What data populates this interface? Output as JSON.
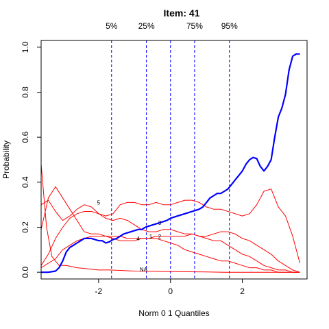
{
  "chart_data": {
    "type": "line",
    "title": "Item:  41",
    "xlabel": "Norm 0 1 Quantiles",
    "ylabel": "Probability",
    "xlim": [
      -3.6,
      3.8
    ],
    "ylim": [
      -0.03,
      1.03
    ],
    "x_ticks": [
      -2,
      0,
      2
    ],
    "y_ticks": [
      0.0,
      0.2,
      0.4,
      0.6,
      0.8,
      1.0
    ],
    "x_tick_labels": [
      "-2",
      "0",
      "2"
    ],
    "y_tick_labels": [
      "0.0",
      "0.2",
      "0.4",
      "0.6",
      "0.8",
      "1.0"
    ],
    "grid": false,
    "quantile_lines": [
      {
        "label": "5%",
        "x": -1.64
      },
      {
        "label": "25%",
        "x": -0.67
      },
      {
        "label": "",
        "x": 0.0
      },
      {
        "label": "75%",
        "x": 0.67
      },
      {
        "label": "95%",
        "x": 1.64
      }
    ],
    "colors": {
      "key": "#0000ff",
      "distractor": "#ff0000",
      "quantile": "#0000ff",
      "axis": "#000000"
    },
    "series": [
      {
        "label": "3",
        "label_at": [
          -0.3,
          0.21
        ],
        "role": "key",
        "x": [
          -3.6,
          -3.4,
          -3.2,
          -3.1,
          -3.0,
          -2.9,
          -2.8,
          -2.7,
          -2.6,
          -2.5,
          -2.4,
          -2.3,
          -2.2,
          -2.1,
          -2.0,
          -1.9,
          -1.8,
          -1.7,
          -1.6,
          -1.5,
          -1.4,
          -1.3,
          -1.2,
          -1.1,
          -1.0,
          -0.9,
          -0.8,
          -0.7,
          -0.6,
          -0.5,
          -0.4,
          -0.3,
          -0.2,
          -0.1,
          0.0,
          0.1,
          0.2,
          0.3,
          0.4,
          0.5,
          0.6,
          0.7,
          0.8,
          0.9,
          1.0,
          1.1,
          1.2,
          1.3,
          1.4,
          1.5,
          1.6,
          1.7,
          1.8,
          1.9,
          2.0,
          2.1,
          2.2,
          2.3,
          2.4,
          2.5,
          2.6,
          2.7,
          2.8,
          2.9,
          3.0,
          3.1,
          3.2,
          3.3,
          3.4,
          3.5,
          3.6
        ],
        "values": [
          0.0,
          0.0,
          0.005,
          0.02,
          0.05,
          0.09,
          0.11,
          0.12,
          0.13,
          0.14,
          0.15,
          0.15,
          0.15,
          0.145,
          0.14,
          0.14,
          0.13,
          0.135,
          0.145,
          0.15,
          0.16,
          0.17,
          0.175,
          0.18,
          0.185,
          0.19,
          0.19,
          0.2,
          0.205,
          0.21,
          0.215,
          0.22,
          0.225,
          0.23,
          0.24,
          0.245,
          0.25,
          0.255,
          0.26,
          0.265,
          0.27,
          0.275,
          0.28,
          0.29,
          0.31,
          0.33,
          0.34,
          0.35,
          0.35,
          0.36,
          0.37,
          0.39,
          0.41,
          0.43,
          0.45,
          0.48,
          0.5,
          0.51,
          0.505,
          0.47,
          0.45,
          0.47,
          0.5,
          0.6,
          0.69,
          0.73,
          0.79,
          0.9,
          0.96,
          0.97,
          0.97
        ]
      },
      {
        "label": "5",
        "label_at": [
          -2.0,
          0.3
        ],
        "role": "distractor",
        "x": [
          -3.6,
          -3.4,
          -3.2,
          -3.0,
          -2.8,
          -2.6,
          -2.4,
          -2.2,
          -2.0,
          -1.8,
          -1.6,
          -1.4,
          -1.2,
          -1.0,
          -0.8,
          -0.6,
          -0.4,
          -0.2,
          0.0,
          0.2,
          0.4,
          0.6,
          0.8,
          1.0,
          1.2,
          1.4,
          1.6,
          1.8,
          2.0,
          2.2,
          2.4,
          2.6,
          2.8,
          3.0,
          3.2,
          3.4,
          3.6
        ],
        "values": [
          0.03,
          0.08,
          0.15,
          0.2,
          0.24,
          0.26,
          0.27,
          0.27,
          0.26,
          0.25,
          0.26,
          0.3,
          0.31,
          0.31,
          0.3,
          0.3,
          0.31,
          0.3,
          0.3,
          0.31,
          0.32,
          0.32,
          0.31,
          0.29,
          0.28,
          0.28,
          0.27,
          0.26,
          0.25,
          0.26,
          0.3,
          0.36,
          0.37,
          0.29,
          0.25,
          0.16,
          0.04
        ]
      },
      {
        "label": "1",
        "label_at": [
          -0.55,
          0.15
        ],
        "role": "distractor",
        "x": [
          -3.6,
          -3.4,
          -3.2,
          -3.0,
          -2.8,
          -2.6,
          -2.4,
          -2.2,
          -2.0,
          -1.8,
          -1.6,
          -1.4,
          -1.2,
          -1.0,
          -0.8,
          -0.6,
          -0.4,
          -0.2,
          0.0,
          0.2,
          0.4,
          0.6,
          0.8,
          1.0,
          1.2,
          1.4,
          1.6,
          1.8,
          2.0,
          2.2,
          2.4,
          2.6,
          2.8,
          3.0,
          3.2,
          3.4,
          3.6
        ],
        "values": [
          0.3,
          0.32,
          0.27,
          0.23,
          0.25,
          0.28,
          0.3,
          0.29,
          0.26,
          0.24,
          0.23,
          0.24,
          0.23,
          0.21,
          0.19,
          0.18,
          0.18,
          0.19,
          0.19,
          0.18,
          0.17,
          0.17,
          0.16,
          0.15,
          0.14,
          0.14,
          0.12,
          0.1,
          0.08,
          0.07,
          0.05,
          0.03,
          0.02,
          0.01,
          0.01,
          0.0,
          0.0
        ]
      },
      {
        "label": "2",
        "label_at": [
          -0.3,
          0.15
        ],
        "role": "distractor",
        "x": [
          -3.6,
          -3.4,
          -3.2,
          -3.0,
          -2.8,
          -2.6,
          -2.4,
          -2.2,
          -2.0,
          -1.8,
          -1.6,
          -1.4,
          -1.2,
          -1.0,
          -0.8,
          -0.6,
          -0.4,
          -0.2,
          0.0,
          0.2,
          0.4,
          0.6,
          0.8,
          1.0,
          1.2,
          1.4,
          1.6,
          1.8,
          2.0,
          2.2,
          2.4,
          2.6,
          2.8,
          3.0,
          3.2,
          3.4,
          3.6
        ],
        "values": [
          0.19,
          0.33,
          0.38,
          0.33,
          0.28,
          0.23,
          0.18,
          0.17,
          0.17,
          0.16,
          0.16,
          0.16,
          0.15,
          0.15,
          0.15,
          0.15,
          0.15,
          0.14,
          0.13,
          0.12,
          0.1,
          0.09,
          0.08,
          0.07,
          0.06,
          0.05,
          0.05,
          0.04,
          0.03,
          0.02,
          0.02,
          0.01,
          0.01,
          0.0,
          0.0,
          0.0,
          0.0
        ]
      },
      {
        "label": "4",
        "label_at": [
          -0.9,
          0.14
        ],
        "role": "distractor",
        "x": [
          -3.6,
          -3.4,
          -3.2,
          -3.0,
          -2.8,
          -2.6,
          -2.4,
          -2.2,
          -2.0,
          -1.8,
          -1.6,
          -1.4,
          -1.2,
          -1.0,
          -0.8,
          -0.6,
          -0.4,
          -0.2,
          0.0,
          0.2,
          0.4,
          0.6,
          0.8,
          1.0,
          1.2,
          1.4,
          1.6,
          1.8,
          2.0,
          2.2,
          2.4,
          2.6,
          2.8,
          3.0,
          3.2,
          3.4,
          3.6
        ],
        "values": [
          0.02,
          0.04,
          0.06,
          0.1,
          0.12,
          0.14,
          0.15,
          0.16,
          0.16,
          0.16,
          0.15,
          0.14,
          0.14,
          0.14,
          0.15,
          0.15,
          0.16,
          0.16,
          0.16,
          0.16,
          0.16,
          0.17,
          0.16,
          0.16,
          0.17,
          0.18,
          0.18,
          0.17,
          0.15,
          0.14,
          0.12,
          0.1,
          0.08,
          0.05,
          0.03,
          0.01,
          0.0
        ]
      },
      {
        "label": "NA",
        "label_at": [
          -0.75,
          0.003
        ],
        "role": "distractor",
        "x": [
          -3.6,
          -3.45,
          -3.3,
          -3.1,
          -2.9,
          -2.6,
          -2.3,
          -2.0,
          -1.7,
          -1.4,
          -1.0,
          -0.5,
          0.0,
          0.5,
          1.0,
          1.5,
          2.0,
          2.5,
          3.0,
          3.6
        ],
        "values": [
          0.48,
          0.2,
          0.07,
          0.03,
          0.03,
          0.02,
          0.015,
          0.01,
          0.01,
          0.008,
          0.005,
          0.004,
          0.003,
          0.002,
          0.001,
          0.0,
          0.0,
          0.0,
          0.0,
          0.0
        ]
      }
    ]
  }
}
